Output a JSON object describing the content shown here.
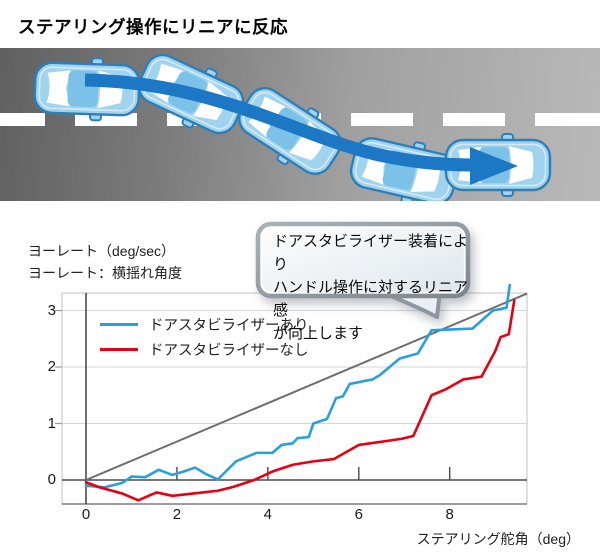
{
  "header": {
    "title": "ステアリング操作にリニアに反応"
  },
  "road": {
    "description_icons": [
      "car-top-view-icon",
      "lane-change-arrow-icon",
      "dashed-center-line"
    ],
    "car_count": 5
  },
  "callout": {
    "lines": [
      "ドアスタビライザー装着により",
      "ハンドル操作に対するリニア感",
      "が向上します"
    ]
  },
  "chart_data": {
    "type": "line",
    "ylabel_line1": "ヨーレート（deg/sec）",
    "ylabel_line2": "ヨーレート：横揺れ角度",
    "xlabel": "ステアリング舵角（deg）",
    "xlim": [
      0,
      9.7
    ],
    "ylim": [
      -0.42,
      3.31
    ],
    "xticks": [
      0,
      2,
      4,
      6,
      8
    ],
    "yticks": [
      0,
      1,
      2,
      3
    ],
    "grid": "horizontal",
    "legend_position": "top-left-inside",
    "reference_line": {
      "color": "#6E6E6E",
      "points": [
        [
          0,
          0
        ],
        [
          9.7,
          3.3
        ]
      ]
    },
    "series": [
      {
        "name": "ドアスタビライザーあり",
        "color": "#29A0DC",
        "points": [
          [
            0,
            -0.1
          ],
          [
            0.4,
            -0.13
          ],
          [
            0.8,
            -0.05
          ],
          [
            1.0,
            0.06
          ],
          [
            1.3,
            0.05
          ],
          [
            1.6,
            0.18
          ],
          [
            1.9,
            0.09
          ],
          [
            2.15,
            0.15
          ],
          [
            2.4,
            0.22
          ],
          [
            2.65,
            0.1
          ],
          [
            2.9,
            0.01
          ],
          [
            3.3,
            0.33
          ],
          [
            3.75,
            0.48
          ],
          [
            4.1,
            0.48
          ],
          [
            4.3,
            0.62
          ],
          [
            4.55,
            0.65
          ],
          [
            4.65,
            0.74
          ],
          [
            4.9,
            0.76
          ],
          [
            5.0,
            1.0
          ],
          [
            5.3,
            1.08
          ],
          [
            5.5,
            1.45
          ],
          [
            5.65,
            1.48
          ],
          [
            5.8,
            1.7
          ],
          [
            6.3,
            1.78
          ],
          [
            6.45,
            1.85
          ],
          [
            6.9,
            2.15
          ],
          [
            7.3,
            2.24
          ],
          [
            7.6,
            2.65
          ],
          [
            8.5,
            2.68
          ],
          [
            8.95,
            3.0
          ],
          [
            9.25,
            3.05
          ],
          [
            9.32,
            3.45
          ]
        ]
      },
      {
        "name": "ドアスタビライザーなし",
        "color": "#E60012",
        "points": [
          [
            0,
            -0.04
          ],
          [
            0.3,
            -0.13
          ],
          [
            0.8,
            -0.24
          ],
          [
            1.15,
            -0.36
          ],
          [
            1.55,
            -0.22
          ],
          [
            1.9,
            -0.28
          ],
          [
            2.35,
            -0.24
          ],
          [
            2.9,
            -0.19
          ],
          [
            3.25,
            -0.12
          ],
          [
            3.7,
            0.0
          ],
          [
            4.1,
            0.15
          ],
          [
            4.55,
            0.27
          ],
          [
            5.0,
            0.33
          ],
          [
            5.45,
            0.37
          ],
          [
            6.0,
            0.62
          ],
          [
            6.35,
            0.66
          ],
          [
            6.95,
            0.73
          ],
          [
            7.2,
            0.78
          ],
          [
            7.6,
            1.5
          ],
          [
            7.9,
            1.6
          ],
          [
            8.3,
            1.78
          ],
          [
            8.7,
            1.83
          ],
          [
            9.0,
            2.28
          ],
          [
            9.12,
            2.53
          ],
          [
            9.3,
            2.58
          ],
          [
            9.42,
            3.18
          ]
        ]
      }
    ],
    "colors": {
      "axis": "#4A4A4A",
      "border": "#C2C2C2",
      "gridline": "#D6D6D6"
    }
  }
}
